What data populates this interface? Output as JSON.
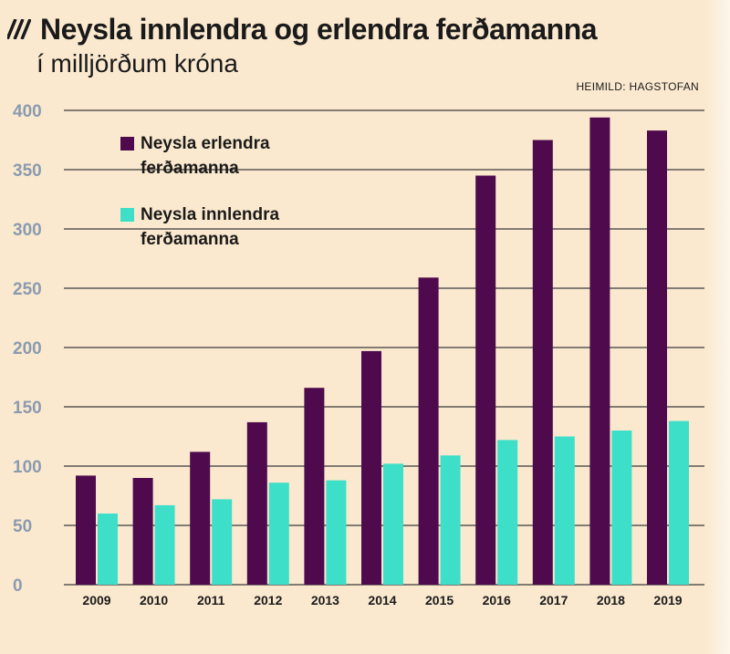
{
  "header": {
    "title": "Neysla innlendra og erlendra ferðamanna",
    "subtitle": "í milljörðum króna",
    "source": "HEIMILD: HAGSTOFAN",
    "hatch_icon": "diagonal-hatch-icon"
  },
  "colors": {
    "background": "#fbe9cf",
    "foreign": "#4e0a4d",
    "domestic": "#3ddfc8",
    "grid": "#3a3a3a",
    "axis_text": "#8a9bb0"
  },
  "legend": {
    "items": [
      {
        "label": "Neysla erlendra ferðamanna",
        "color": "#4e0a4d"
      },
      {
        "label": "Neysla innlendra ferðamanna",
        "color": "#3ddfc8"
      }
    ]
  },
  "chart_data": {
    "type": "bar",
    "title": "Neysla innlendra og erlendra ferðamanna",
    "subtitle": "í milljörðum króna",
    "categories": [
      "2009",
      "2010",
      "2011",
      "2012",
      "2013",
      "2014",
      "2015",
      "2016",
      "2017",
      "2018",
      "2019"
    ],
    "series": [
      {
        "name": "Neysla erlendra ferðamanna",
        "values": [
          92,
          90,
          112,
          137,
          166,
          197,
          259,
          345,
          375,
          394,
          383
        ]
      },
      {
        "name": "Neysla innlendra ferðamanna",
        "values": [
          60,
          67,
          72,
          86,
          88,
          102,
          109,
          122,
          125,
          130,
          138
        ]
      }
    ],
    "ylim": [
      0,
      400
    ],
    "yticks": [
      0,
      50,
      100,
      150,
      200,
      250,
      300,
      350,
      400
    ],
    "grid": true,
    "legend_position": "top-left"
  }
}
